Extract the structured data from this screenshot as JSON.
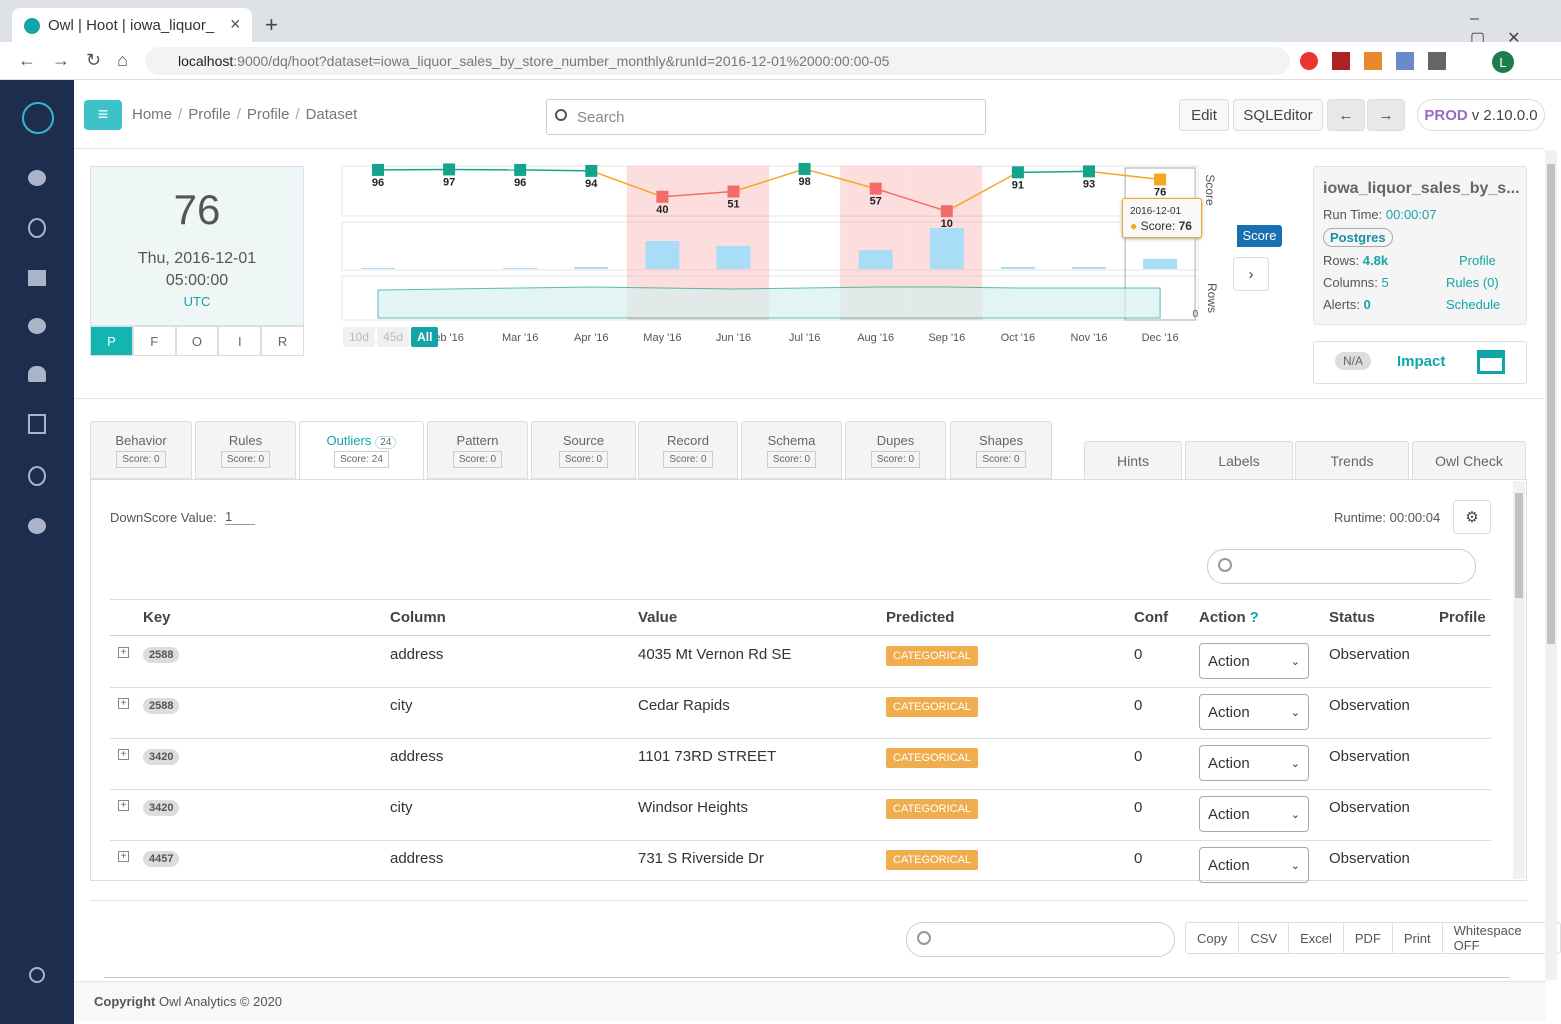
{
  "browser": {
    "tab_title": "Owl | Hoot | iowa_liquor_",
    "url_host": "localhost",
    "url_rest": ":9000/dq/hoot?dataset=iowa_liquor_sales_by_store_number_monthly&runId=2016-12-01%2000:00:00-05",
    "avatar": "L"
  },
  "header": {
    "breadcrumbs": [
      "Home",
      "Profile",
      "Profile",
      "Dataset"
    ],
    "search_placeholder": "Search",
    "buttons": [
      "Edit",
      "SQLEditor"
    ],
    "env": "PROD",
    "version": "v 2.10.0.0"
  },
  "score_card": {
    "score": "76",
    "date": "Thu, 2016-12-01",
    "time": "05:00:00",
    "timezone": "UTC",
    "filters": [
      "P",
      "F",
      "O",
      "I",
      "R"
    ]
  },
  "range_buttons": [
    "10d",
    "45d",
    "All"
  ],
  "chart_data": [
    {
      "type": "line",
      "ylabel": "Score",
      "ylim": [
        0,
        100
      ],
      "categories": [
        null,
        "eb '16",
        "Mar '16",
        "Apr '16",
        "May '16",
        "Jun '16",
        "Jul '16",
        "Aug '16",
        "Sep '16",
        "Oct '16",
        "Nov '16",
        "Dec '16"
      ],
      "series": [
        {
          "name": "Score",
          "color": "#12a58c",
          "values": [
            96,
            97,
            96,
            94,
            40,
            51,
            98,
            57,
            10,
            91,
            93,
            76
          ],
          "point_colors": [
            "#12a58c",
            "#12a58c",
            "#12a58c",
            "#12a58c",
            "#f36b6b",
            "#f36b6b",
            "#12a58c",
            "#f36b6b",
            "#f36b6b",
            "#12a58c",
            "#12a58c",
            "#f5a623"
          ]
        }
      ]
    },
    {
      "type": "bar",
      "ylim": [
        0,
        48
      ],
      "color": "#a8dcf7",
      "values": [
        1,
        0,
        1,
        2,
        28,
        23,
        0,
        19,
        41,
        2,
        2,
        10
      ]
    },
    {
      "type": "area",
      "ylabel": "Rows",
      "ylim": [
        0,
        42
      ],
      "yticks": [
        0
      ],
      "color": "#12a58c",
      "values": [
        28,
        29,
        30,
        31,
        30,
        29,
        30,
        31,
        31,
        30,
        30,
        30
      ]
    }
  ],
  "tooltip": {
    "date": "2016-12-01",
    "label": "Score:",
    "value": "76"
  },
  "legend_button": "Score",
  "dataset": {
    "name": "iowa_liquor_sales_by_s...",
    "run_time_label": "Run Time:",
    "run_time": "00:00:07",
    "source": "Postgres",
    "rows_label": "Rows:",
    "rows": "4.8k",
    "profile_link": "Profile",
    "columns_label": "Columns:",
    "columns": "5",
    "rules_link": "Rules (0)",
    "alerts_label": "Alerts:",
    "alerts": "0",
    "schedule_link": "Schedule"
  },
  "impact": {
    "badge": "N/A",
    "label": "Impact"
  },
  "tabs": [
    {
      "name": "Behavior",
      "score": "Score: 0"
    },
    {
      "name": "Rules",
      "score": "Score: 0"
    },
    {
      "name": "Outliers",
      "badge": "24",
      "score": "Score: 24"
    },
    {
      "name": "Pattern",
      "score": "Score: 0"
    },
    {
      "name": "Source",
      "score": "Score: 0"
    },
    {
      "name": "Record",
      "score": "Score: 0"
    },
    {
      "name": "Schema",
      "score": "Score: 0"
    },
    {
      "name": "Dupes",
      "score": "Score: 0"
    },
    {
      "name": "Shapes",
      "score": "Score: 0"
    }
  ],
  "right_tabs": [
    "Hints",
    "Labels",
    "Trends",
    "Owl Check"
  ],
  "panel": {
    "downscore_label": "DownScore Value:",
    "downscore_value": "1",
    "runtime": "Runtime: 00:00:04"
  },
  "table": {
    "headers": [
      "Key",
      "Column",
      "Value",
      "Predicted",
      "Conf",
      "Action",
      "Status",
      "Profile"
    ],
    "action_help": "?",
    "rows": [
      [
        "2588",
        "address",
        "4035 Mt Vernon Rd SE",
        "CATEGORICAL",
        "0",
        "Action",
        "Observation"
      ],
      [
        "2588",
        "city",
        "Cedar Rapids",
        "CATEGORICAL",
        "0",
        "Action",
        "Observation"
      ],
      [
        "3420",
        "address",
        "1101 73RD STREET",
        "CATEGORICAL",
        "0",
        "Action",
        "Observation"
      ],
      [
        "3420",
        "city",
        "Windsor Heights",
        "CATEGORICAL",
        "0",
        "Action",
        "Observation"
      ],
      [
        "4457",
        "address",
        "731 S Riverside Dr",
        "CATEGORICAL",
        "0",
        "Action",
        "Observation"
      ]
    ]
  },
  "export_buttons": [
    "Copy",
    "CSV",
    "Excel",
    "PDF",
    "Print",
    "Whitespace OFF"
  ],
  "footer": {
    "bold": "Copyright",
    "text": "Owl Analytics © 2020"
  }
}
